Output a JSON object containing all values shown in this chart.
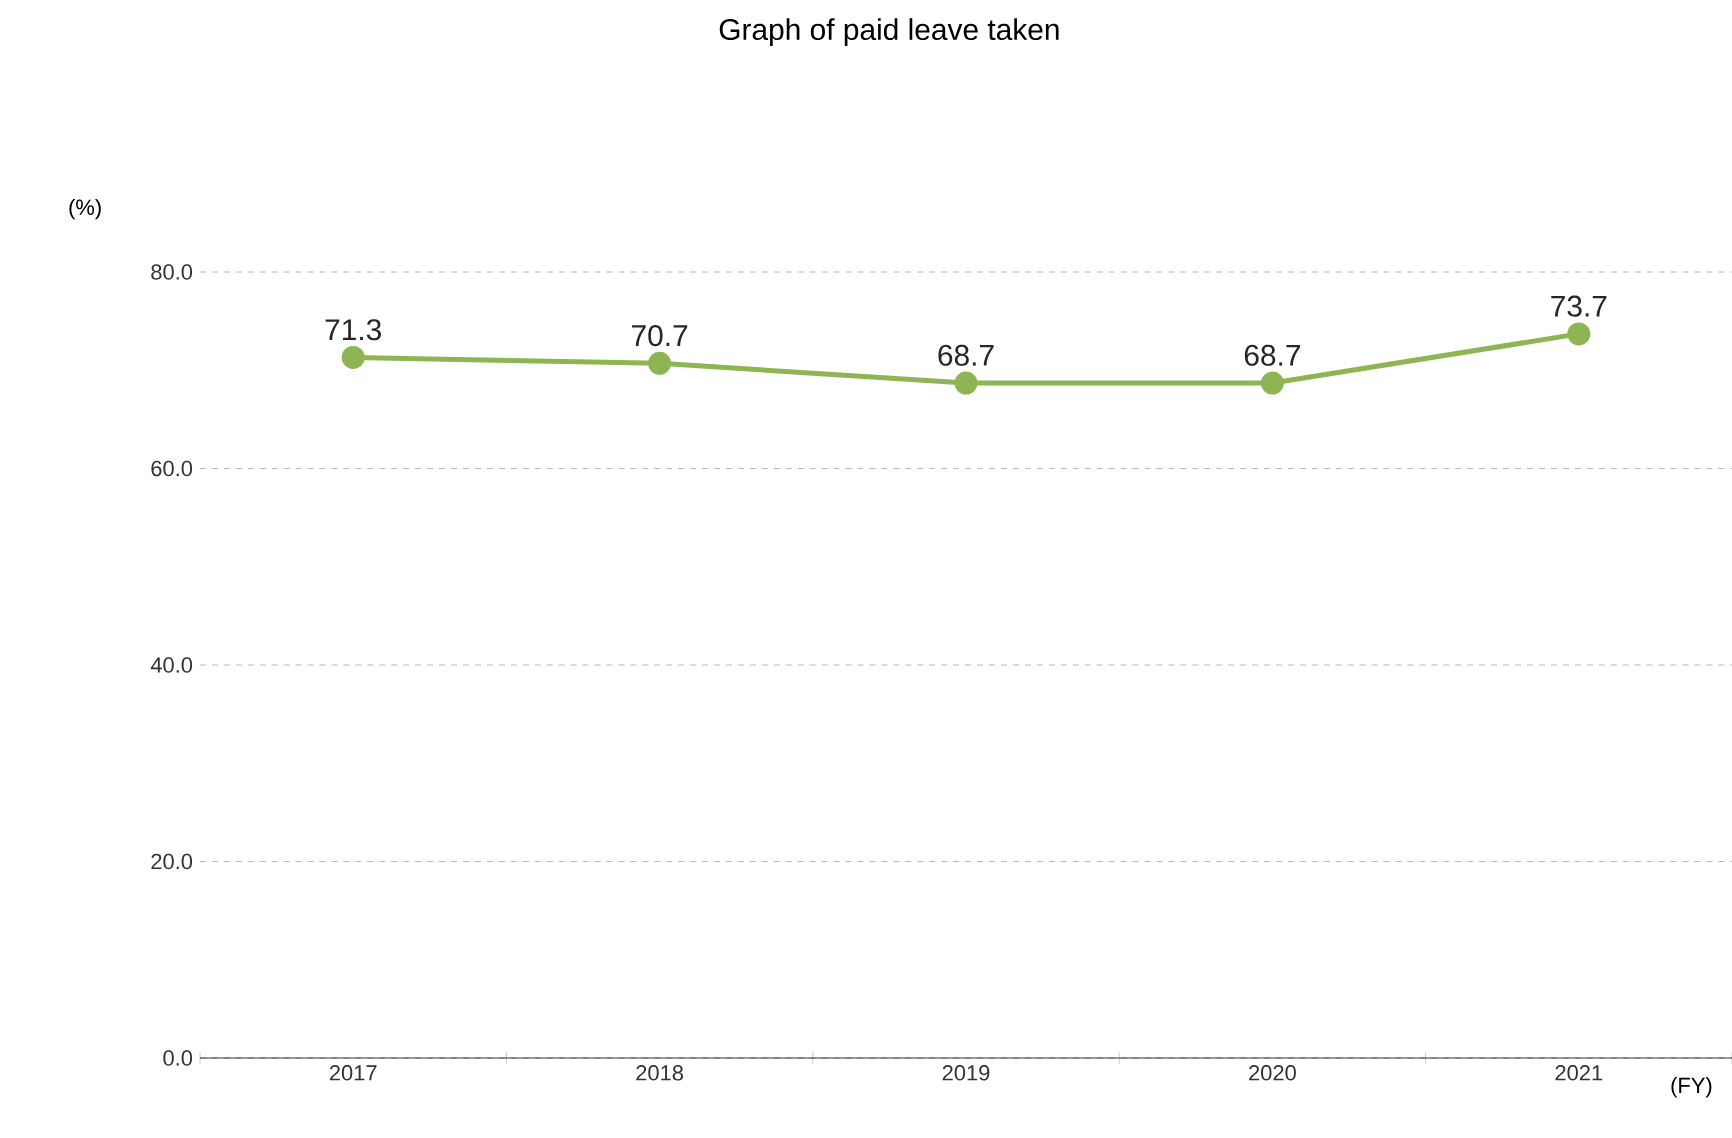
{
  "chart_data": {
    "type": "line",
    "title": "Graph of paid leave taken",
    "ylabel": "(%)",
    "xlabel": "(FY)",
    "categories": [
      "2017",
      "2018",
      "2019",
      "2020",
      "2021"
    ],
    "series": [
      {
        "color": "#8db554",
        "values": [
          71.3,
          70.7,
          68.7,
          68.7,
          73.7
        ]
      }
    ],
    "ylim": [
      0,
      80
    ],
    "yticks": [
      {
        "value": 0,
        "label": "0.0"
      },
      {
        "value": 20,
        "label": "20.0"
      },
      {
        "value": 40,
        "label": "40.0"
      },
      {
        "value": 60,
        "label": "60.0"
      },
      {
        "value": 80,
        "label": "80.0"
      }
    ],
    "grid": "y",
    "marker": "circle",
    "line_style": "solid",
    "data_labels": true
  }
}
